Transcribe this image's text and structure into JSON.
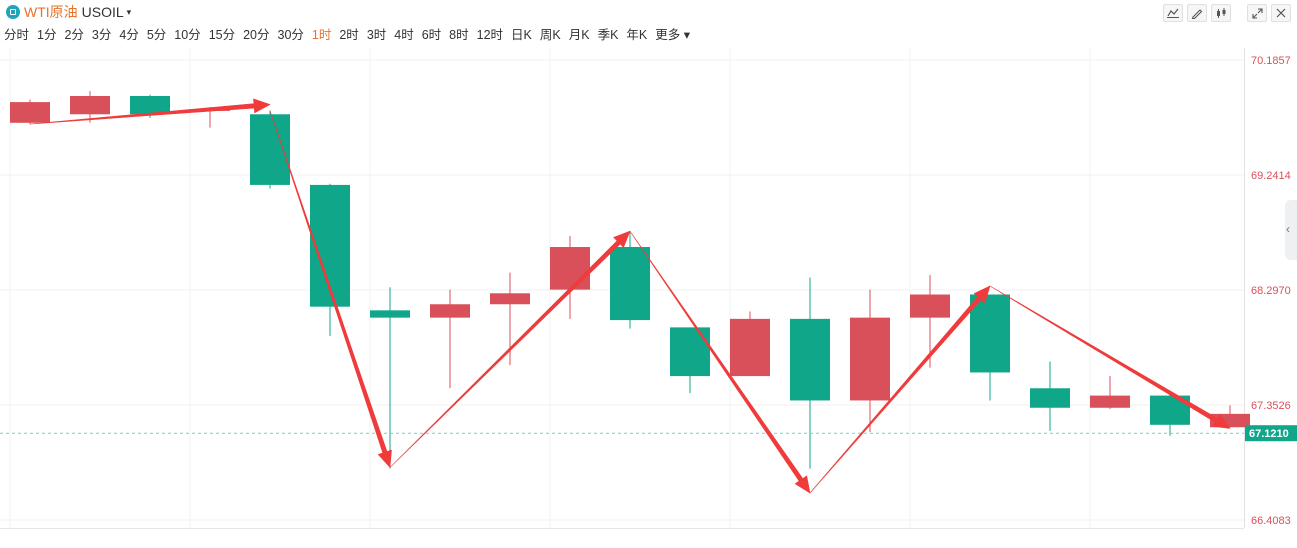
{
  "header": {
    "symbol_name": "WTI原油",
    "symbol_code": "USOIL",
    "tools": [
      "draw-line-icon",
      "pencil-icon",
      "candle-type-icon",
      "expand-icon",
      "close-icon"
    ]
  },
  "timeframes": [
    "分时",
    "1分",
    "2分",
    "3分",
    "4分",
    "5分",
    "10分",
    "15分",
    "20分",
    "30分",
    "1时",
    "2时",
    "3时",
    "4时",
    "6时",
    "8时",
    "12时",
    "日K",
    "周K",
    "月K",
    "季K",
    "年K",
    "更多"
  ],
  "active_timeframe": "1时",
  "colors": {
    "up": "#d9505a",
    "down": "#0fa68a",
    "arrow": "#ef3b3b",
    "accent": "#e8722a",
    "price_tag": "#0fa68a"
  },
  "chart_data": {
    "type": "candlestick",
    "ylim": [
      66.4083,
      70.1857
    ],
    "y_ticks": [
      "70.1857",
      "69.2414",
      "68.2970",
      "67.3526",
      "66.4083"
    ],
    "current_price": "67.1210",
    "candles": [
      {
        "open": 69.67,
        "close": 69.84,
        "high": 69.86,
        "low": 69.66
      },
      {
        "open": 69.74,
        "close": 69.89,
        "high": 69.93,
        "low": 69.67
      },
      {
        "open": 69.89,
        "close": 69.74,
        "high": 69.9,
        "low": 69.71
      },
      {
        "open": 69.77,
        "close": 69.78,
        "high": 69.8,
        "low": 69.63
      },
      {
        "open": 69.74,
        "close": 69.16,
        "high": 69.77,
        "low": 69.13
      },
      {
        "open": 69.16,
        "close": 68.16,
        "high": 69.17,
        "low": 67.92
      },
      {
        "open": 68.13,
        "close": 68.07,
        "high": 68.32,
        "low": 66.83
      },
      {
        "open": 68.07,
        "close": 68.18,
        "high": 68.3,
        "low": 67.49
      },
      {
        "open": 68.18,
        "close": 68.27,
        "high": 68.44,
        "low": 67.68
      },
      {
        "open": 68.3,
        "close": 68.65,
        "high": 68.74,
        "low": 68.06
      },
      {
        "open": 68.65,
        "close": 68.05,
        "high": 68.77,
        "low": 67.98
      },
      {
        "open": 67.99,
        "close": 67.59,
        "high": 67.99,
        "low": 67.45
      },
      {
        "open": 67.59,
        "close": 68.06,
        "high": 68.12,
        "low": 67.59
      },
      {
        "open": 68.06,
        "close": 67.39,
        "high": 68.4,
        "low": 66.83
      },
      {
        "open": 67.39,
        "close": 68.07,
        "high": 68.3,
        "low": 67.13
      },
      {
        "open": 68.07,
        "close": 68.26,
        "high": 68.42,
        "low": 67.66
      },
      {
        "open": 68.26,
        "close": 67.62,
        "high": 68.26,
        "low": 67.39
      },
      {
        "open": 67.49,
        "close": 67.33,
        "high": 67.71,
        "low": 67.14
      },
      {
        "open": 67.33,
        "close": 67.43,
        "high": 67.59,
        "low": 67.32
      },
      {
        "open": 67.43,
        "close": 67.19,
        "high": 67.46,
        "low": 67.1
      },
      {
        "open": 67.17,
        "close": 67.28,
        "high": 67.35,
        "low": 67.17
      }
    ],
    "arrows": [
      {
        "from": {
          "candle": 0,
          "price": 69.66
        },
        "to": {
          "candle": 4,
          "price": 69.82
        }
      },
      {
        "from": {
          "candle": 4,
          "price": 69.77
        },
        "to": {
          "candle": 6,
          "price": 66.84
        }
      },
      {
        "from": {
          "candle": 6,
          "price": 66.84
        },
        "to": {
          "candle": 10,
          "price": 68.78
        }
      },
      {
        "from": {
          "candle": 10,
          "price": 68.78
        },
        "to": {
          "candle": 13,
          "price": 66.63
        }
      },
      {
        "from": {
          "candle": 13,
          "price": 66.63
        },
        "to": {
          "candle": 16,
          "price": 68.33
        }
      },
      {
        "from": {
          "candle": 16,
          "price": 68.33
        },
        "to": {
          "candle": 20,
          "price": 67.16
        }
      }
    ]
  }
}
